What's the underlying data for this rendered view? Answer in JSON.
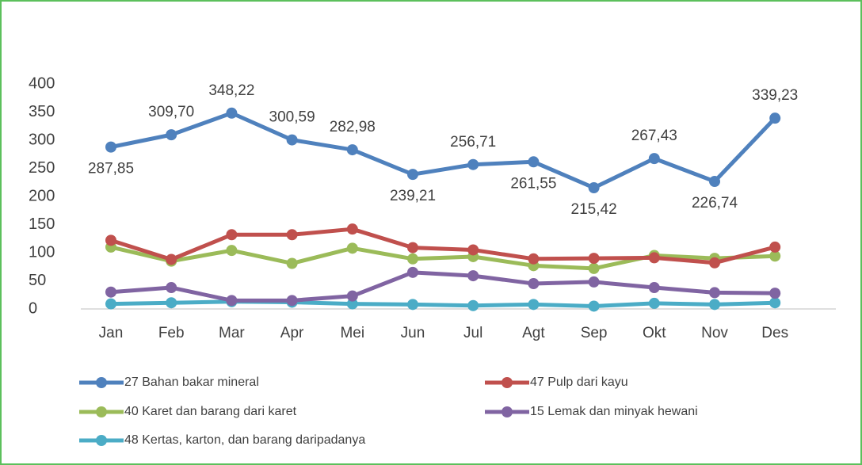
{
  "chart_data": {
    "type": "line",
    "categories": [
      "Jan",
      "Feb",
      "Mar",
      "Apr",
      "Mei",
      "Jun",
      "Jul",
      "Agt",
      "Sep",
      "Okt",
      "Nov",
      "Des"
    ],
    "series": [
      {
        "name": "27 Bahan bakar mineral",
        "color": "#4f81bd",
        "values": [
          287.85,
          309.7,
          348.22,
          300.59,
          282.98,
          239.21,
          256.71,
          261.55,
          215.42,
          267.43,
          226.74,
          339.23
        ],
        "value_labels": [
          "287,85",
          "309,70",
          "348,22",
          "300,59",
          "282,98",
          "239,21",
          "256,71",
          "261,55",
          "215,42",
          "267,43",
          "226,74",
          "339,23"
        ]
      },
      {
        "name": "47 Pulp dari kayu",
        "color": "#c0504d",
        "values": [
          122,
          88,
          132,
          132,
          142,
          109,
          105,
          89,
          90,
          91,
          82,
          110
        ]
      },
      {
        "name": "40 Karet dan barang dari karet",
        "color": "#9bbb59",
        "values": [
          110,
          85,
          104,
          81,
          108,
          89,
          93,
          77,
          72,
          95,
          90,
          94
        ]
      },
      {
        "name": "15 Lemak dan minyak hewani",
        "color": "#8064a2",
        "values": [
          30,
          38,
          15,
          15,
          23,
          65,
          59,
          45,
          48,
          38,
          29,
          28
        ]
      },
      {
        "name": "48 Kertas, karton, dan barang daripadanya",
        "color": "#4bacc6",
        "values": [
          9,
          11,
          13,
          12,
          9,
          8,
          6,
          8,
          5,
          10,
          8,
          11
        ]
      }
    ],
    "ylim": [
      0,
      400
    ],
    "yticks": [
      0,
      50,
      100,
      150,
      200,
      250,
      300,
      350,
      400
    ],
    "grid": false,
    "legend": "bottom"
  }
}
